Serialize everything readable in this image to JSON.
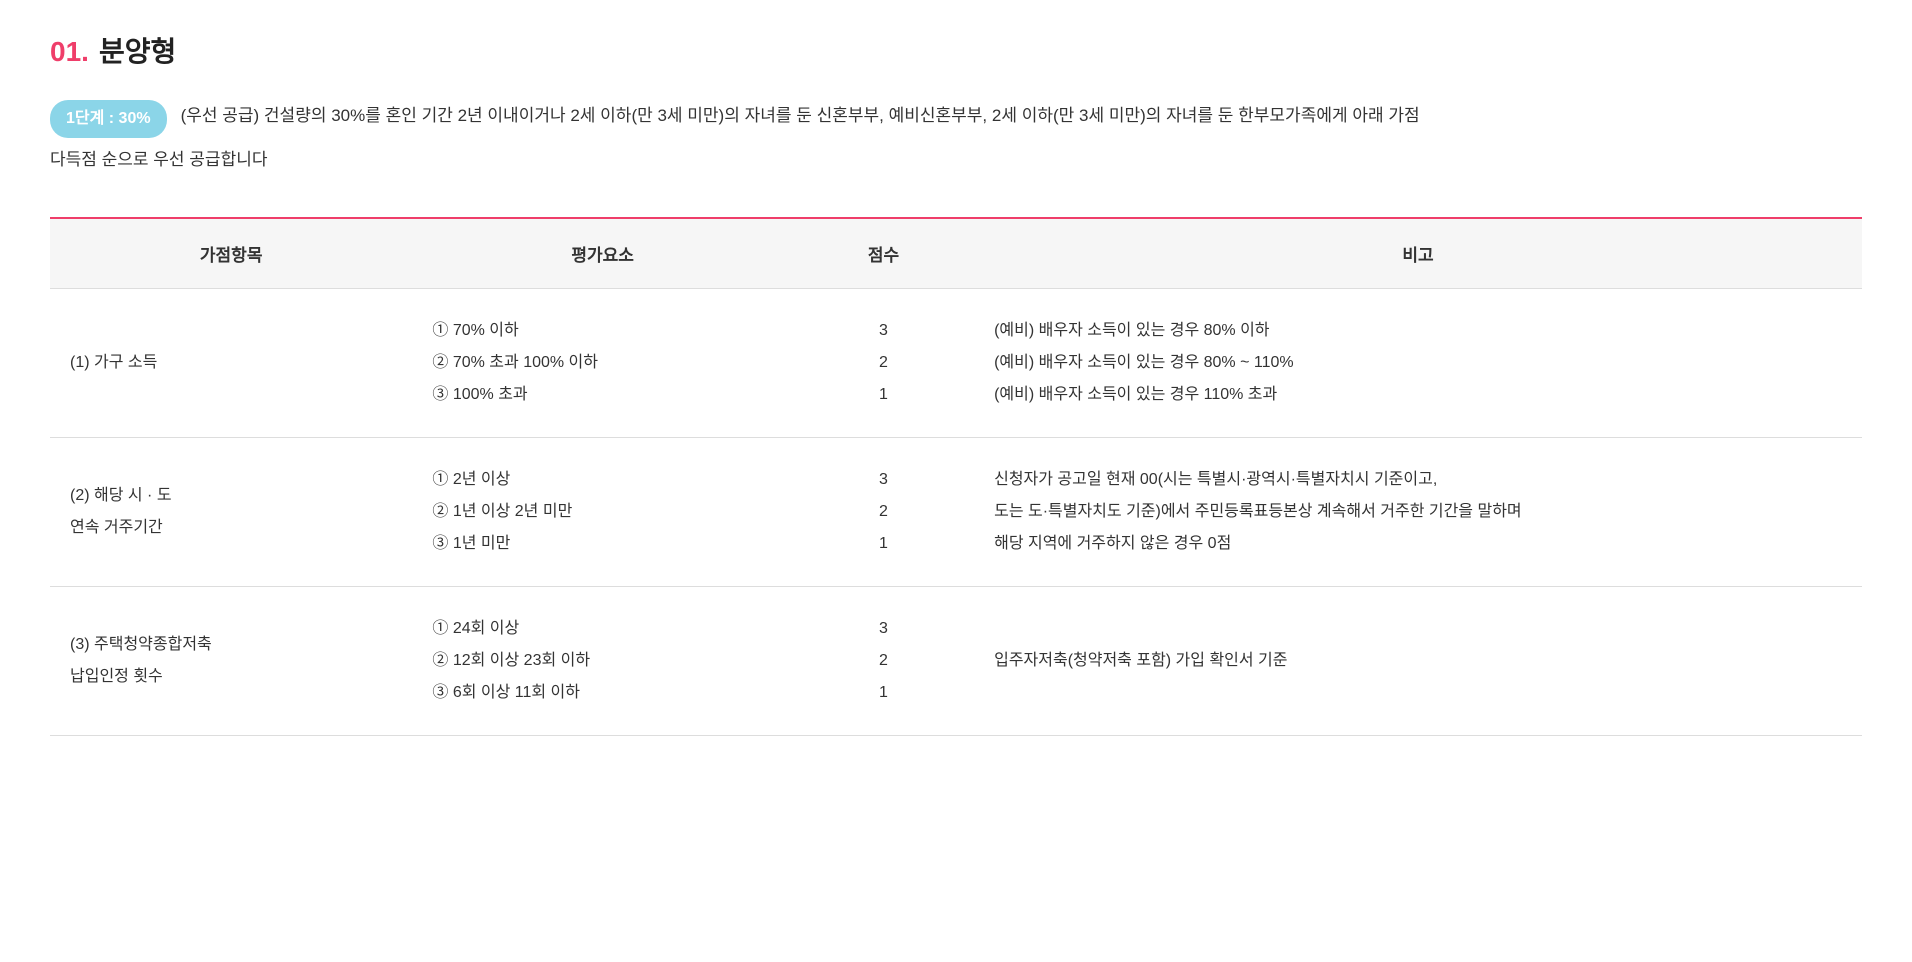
{
  "colors": {
    "accent_pink": "#ef3e6a",
    "badge_bg": "#8bd5e8",
    "badge_text": "#ffffff",
    "text_dark": "#222222",
    "text_body": "#333333",
    "header_bg": "#f6f6f6",
    "row_border": "#dddddd",
    "table_top_border": "#ef3e6a"
  },
  "heading": {
    "number": "01.",
    "title": "분양형"
  },
  "intro": {
    "badge": "1단계 : 30%",
    "text_line1": "(우선 공급) 건설량의 30%를 혼인 기간 2년 이내이거나 2세 이하(만 3세 미만)의 자녀를 둔 신혼부부, 예비신혼부부, 2세 이하(만 3세 미만)의 자녀를 둔 한부모가족에게 아래 가점",
    "text_line2": "다득점 순으로 우선 공급합니다"
  },
  "table": {
    "col_widths": [
      "20%",
      "21%",
      "10%",
      "49%"
    ],
    "headers": [
      "가점항목",
      "평가요소",
      "점수",
      "비고"
    ],
    "rows": [
      {
        "item": [
          "(1) 가구 소득"
        ],
        "criteria": [
          "① 70% 이하",
          "② 70% 초과 100% 이하",
          "③ 100% 초과"
        ],
        "scores": [
          "3",
          "2",
          "1"
        ],
        "notes": [
          "(예비) 배우자 소득이 있는 경우 80% 이하",
          "(예비) 배우자 소득이 있는 경우 80% ~ 110%",
          "(예비) 배우자 소득이 있는 경우 110% 초과"
        ]
      },
      {
        "item": [
          "(2) 해당 시 · 도",
          "연속 거주기간"
        ],
        "criteria": [
          "① 2년 이상",
          "② 1년 이상 2년 미만",
          "③ 1년 미만"
        ],
        "scores": [
          "3",
          "2",
          "1"
        ],
        "notes": [
          "신청자가 공고일 현재 00(시는 특별시·광역시·특별자치시 기준이고,",
          "도는 도·특별자치도 기준)에서 주민등록표등본상 계속해서 거주한 기간을 말하며",
          "해당 지역에 거주하지 않은 경우 0점"
        ]
      },
      {
        "item": [
          "(3) 주택청약종합저축",
          "납입인정 횟수"
        ],
        "criteria": [
          "① 24회 이상",
          "② 12회 이상 23회 이하",
          "③ 6회 이상 11회 이하"
        ],
        "scores": [
          "3",
          "2",
          "1"
        ],
        "notes": [
          "입주자저축(청약저축 포함) 가입 확인서 기준"
        ]
      }
    ]
  }
}
